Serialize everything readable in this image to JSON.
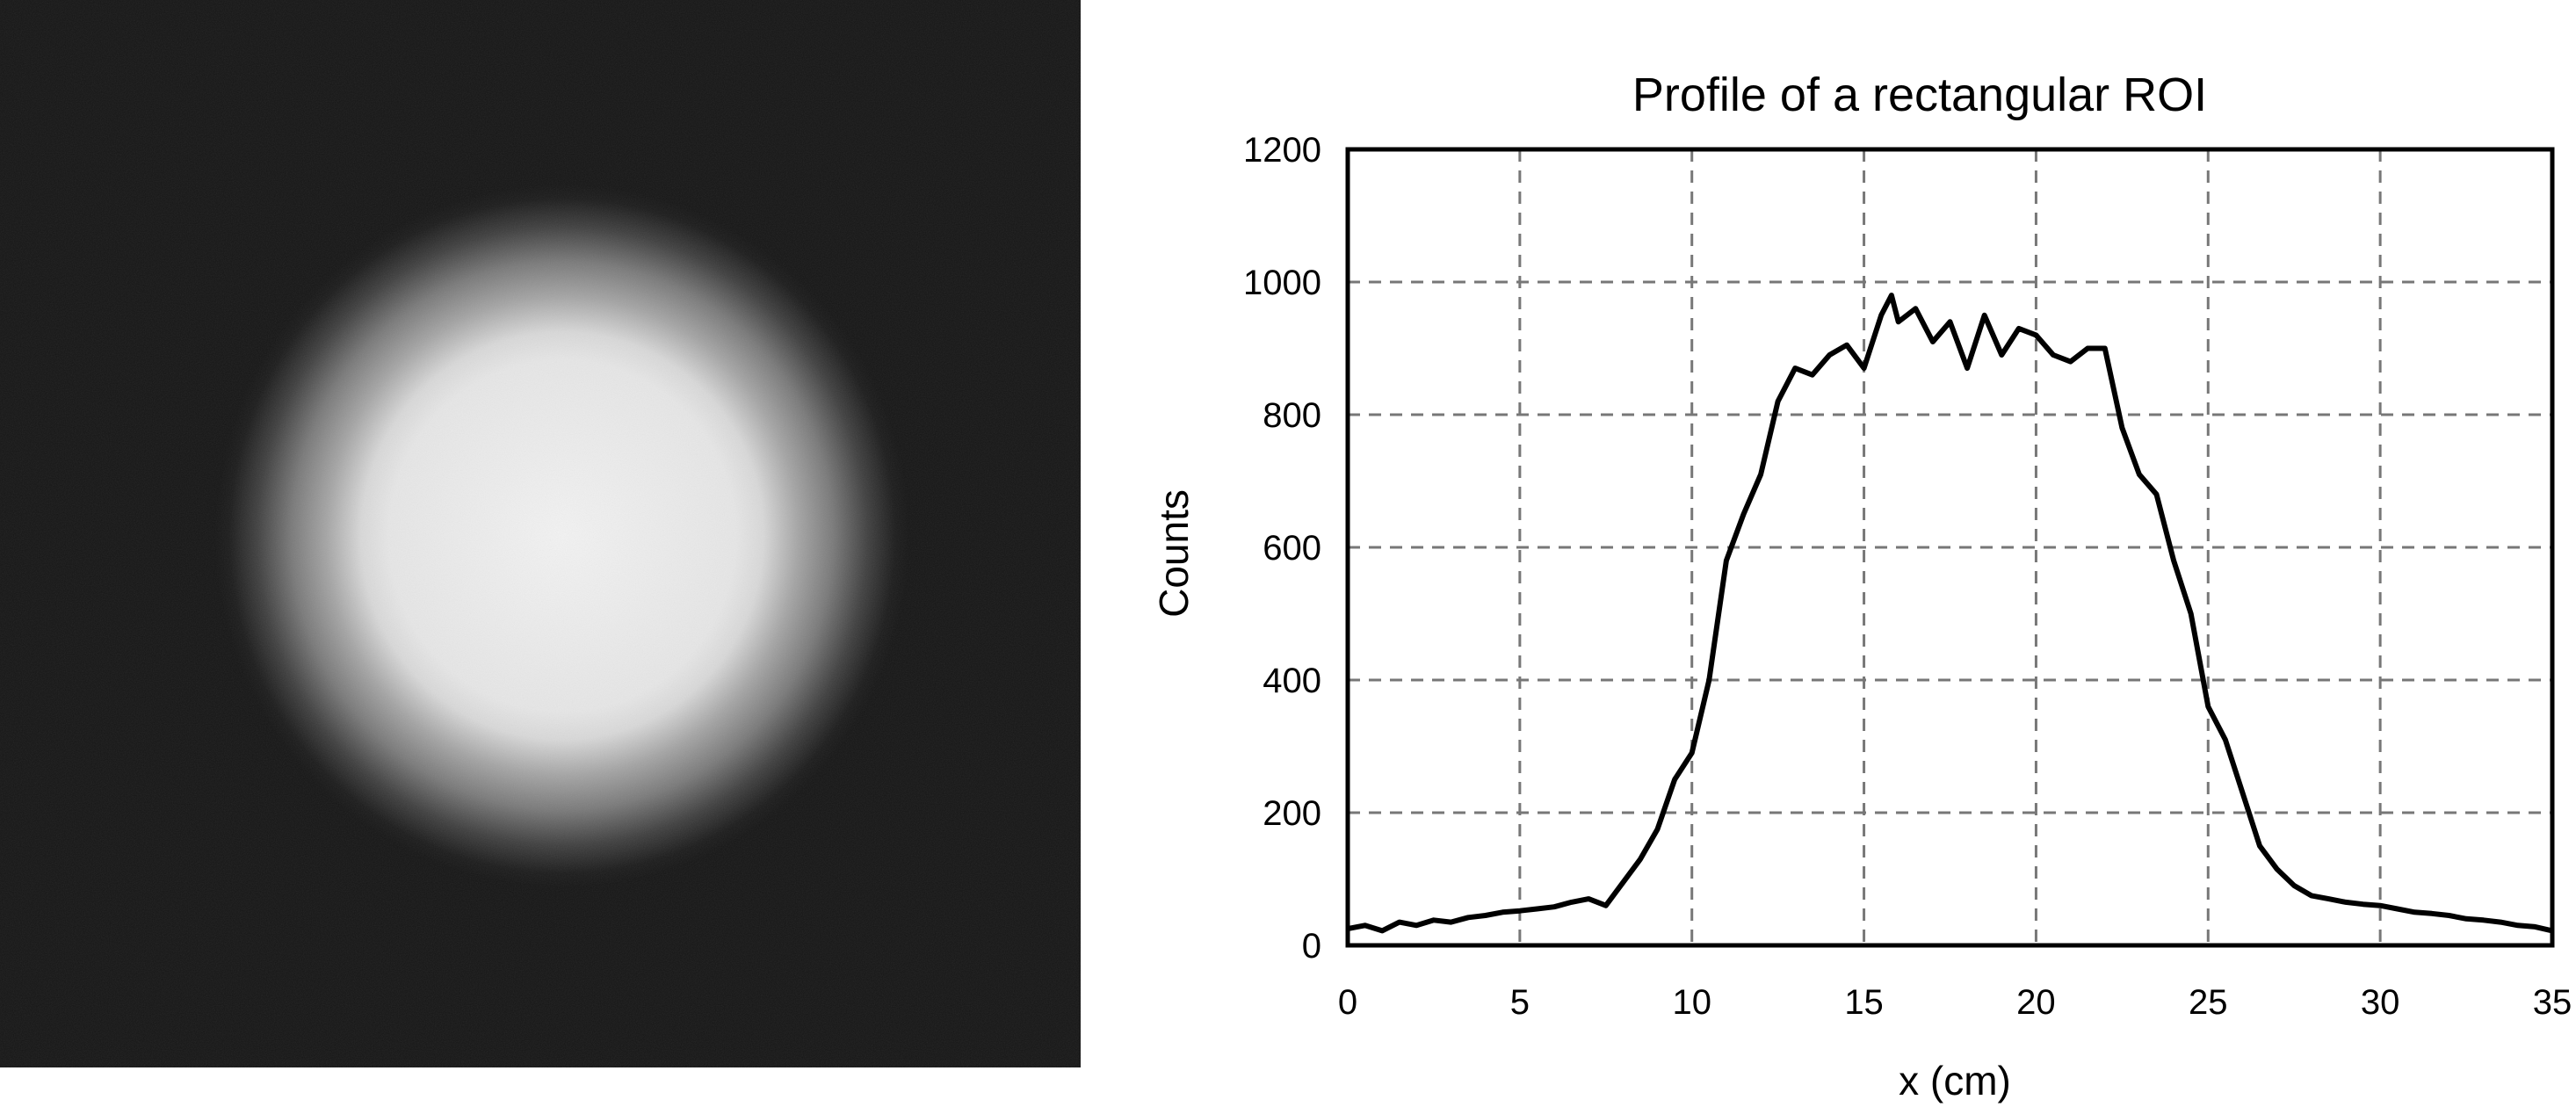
{
  "image_panel": {
    "icon": "gamma-camera-scan-image"
  },
  "chart_data": {
    "type": "line",
    "title": "Profile of a rectangular ROI",
    "xlabel": "x (cm)",
    "ylabel": "Counts",
    "xlim": [
      0,
      35
    ],
    "ylim": [
      0,
      1200
    ],
    "xticks": [
      0,
      5,
      10,
      15,
      20,
      25,
      30,
      35
    ],
    "yticks": [
      0,
      200,
      400,
      600,
      800,
      1000,
      1200
    ],
    "grid": true,
    "series": [
      {
        "color": "#000000",
        "x": [
          0,
          0.5,
          1,
          1.5,
          2,
          2.5,
          3,
          3.5,
          4,
          4.5,
          5,
          5.5,
          6,
          6.5,
          7,
          7.5,
          8,
          8.5,
          9,
          9.5,
          10,
          10.5,
          11,
          11.5,
          12,
          12.5,
          13,
          13.5,
          14,
          14.5,
          15,
          15.5,
          15.8,
          16,
          16.5,
          17,
          17.5,
          18,
          18.5,
          19,
          19.5,
          20,
          20.5,
          21,
          21.5,
          22,
          22.5,
          23,
          23.5,
          24,
          24.5,
          25,
          25.5,
          26,
          26.5,
          27,
          27.5,
          28,
          28.5,
          29,
          29.5,
          30,
          30.5,
          31,
          31.5,
          32,
          32.5,
          33,
          33.5,
          34,
          34.5,
          35
        ],
        "y": [
          25,
          30,
          22,
          35,
          30,
          38,
          35,
          42,
          45,
          50,
          52,
          55,
          58,
          65,
          70,
          60,
          95,
          130,
          175,
          250,
          290,
          400,
          580,
          650,
          710,
          820,
          870,
          860,
          890,
          905,
          870,
          950,
          980,
          940,
          960,
          910,
          940,
          870,
          950,
          890,
          930,
          920,
          890,
          880,
          900,
          900,
          780,
          710,
          680,
          580,
          500,
          360,
          310,
          230,
          150,
          115,
          90,
          75,
          70,
          65,
          62,
          60,
          55,
          50,
          48,
          45,
          40,
          38,
          35,
          30,
          28,
          22
        ]
      }
    ]
  }
}
